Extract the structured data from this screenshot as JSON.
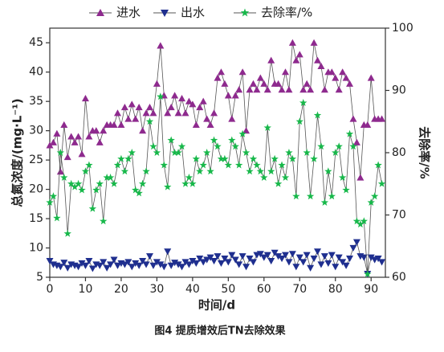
{
  "chart_data": {
    "type": "line",
    "title": "图4 提质增效后TN去除效果",
    "x_label": "时间/d",
    "y_label": "总氮浓度/(mg·L⁻¹)",
    "y2_label": "去除率/%",
    "xlim": [
      0,
      94
    ],
    "xticks": [
      0,
      10,
      20,
      30,
      40,
      50,
      60,
      70,
      80,
      90
    ],
    "ylim": [
      5,
      47.5
    ],
    "yticks": [
      5,
      10,
      15,
      20,
      25,
      30,
      35,
      40,
      45
    ],
    "y2lim": [
      60,
      100
    ],
    "y2ticks": [
      60,
      70,
      80,
      90,
      100
    ],
    "legend": "top",
    "x": [
      0,
      1,
      2,
      3,
      4,
      5,
      6,
      7,
      8,
      9,
      10,
      11,
      12,
      13,
      14,
      15,
      16,
      17,
      18,
      19,
      20,
      21,
      22,
      23,
      24,
      25,
      26,
      27,
      28,
      29,
      30,
      31,
      32,
      33,
      34,
      35,
      36,
      37,
      38,
      39,
      40,
      41,
      42,
      43,
      44,
      45,
      46,
      47,
      48,
      49,
      50,
      51,
      52,
      53,
      54,
      55,
      56,
      57,
      58,
      59,
      60,
      61,
      62,
      63,
      64,
      65,
      66,
      67,
      68,
      69,
      70,
      71,
      72,
      73,
      74,
      75,
      76,
      77,
      78,
      79,
      80,
      81,
      82,
      83,
      84,
      85,
      86,
      87,
      88,
      89,
      90,
      91,
      92,
      93
    ],
    "series": [
      {
        "name": "进水",
        "color": "#8e2a8e",
        "marker": "triangle-up",
        "values": [
          27.5,
          28,
          29.5,
          23,
          31,
          25.5,
          29,
          28,
          29,
          26,
          35.5,
          29,
          30,
          30,
          28,
          30,
          31,
          31,
          31,
          33,
          31,
          34,
          32,
          34.5,
          32,
          34,
          30,
          33,
          34,
          33,
          38,
          44.5,
          36,
          33,
          34,
          36,
          33,
          35.5,
          33,
          35,
          34.5,
          31,
          34,
          35,
          32,
          31,
          33,
          39,
          40,
          38,
          36,
          32,
          36,
          37,
          40,
          30,
          37,
          38,
          37,
          39,
          38,
          37,
          42,
          38,
          38,
          37,
          40,
          37,
          45,
          42,
          43,
          37,
          38,
          37,
          45,
          42,
          41,
          37,
          40,
          40,
          39,
          37,
          40,
          39,
          38,
          32,
          28,
          22,
          31,
          31,
          39,
          32,
          32,
          32
        ]
      },
      {
        "name": "出水",
        "color": "#1f2f8f",
        "marker": "triangle-down",
        "values": [
          7.8,
          7.2,
          7,
          6.8,
          7.5,
          6.6,
          7.2,
          7,
          6.8,
          7.4,
          7,
          7.8,
          6.5,
          7.2,
          7,
          7.6,
          6.6,
          7.2,
          8,
          7,
          7.4,
          7.2,
          7.6,
          6.8,
          7.4,
          7,
          7.8,
          7.2,
          8.6,
          7,
          7.6,
          7.2,
          6.8,
          9.4,
          7,
          7.5,
          7.2,
          6.8,
          7.6,
          7.2,
          7.8,
          7.4,
          8.2,
          7.6,
          8,
          8.4,
          7.8,
          8.6,
          7.4,
          8.2,
          7.6,
          8.8,
          8,
          7.2,
          8.6,
          6.8,
          8.2,
          7.6,
          8.8,
          9,
          8.4,
          8.8,
          7.8,
          9.2,
          8.6,
          8.2,
          8.8,
          7.6,
          9,
          6.8,
          8.4,
          7.6,
          8.8,
          6.6,
          8.2,
          9.4,
          7.2,
          8.6,
          7.4,
          8.8,
          6.8,
          8.4,
          7.6,
          7,
          8.2,
          10,
          11,
          8.6,
          8.4,
          5.6,
          8.4,
          8,
          8.2,
          7.6
        ]
      },
      {
        "name": "去除率/%",
        "color": "#17b84a",
        "marker": "star",
        "axis": "y2",
        "values": [
          72,
          73,
          69.5,
          80,
          76,
          67,
          75,
          74.5,
          75,
          74,
          77,
          78,
          71,
          74,
          75,
          69,
          76,
          76,
          75,
          78,
          79,
          77,
          79,
          80,
          74,
          73.5,
          75,
          77,
          85,
          81,
          80,
          89,
          78,
          74.5,
          82,
          80,
          80,
          81,
          75,
          76,
          75,
          79,
          77,
          78,
          80,
          77,
          82,
          81,
          79,
          79,
          78,
          82,
          81,
          78,
          83,
          80,
          77,
          79,
          78,
          77,
          76,
          84,
          77,
          79,
          75,
          78,
          76,
          80,
          79,
          73,
          85,
          88,
          80,
          73,
          79,
          86,
          81,
          72,
          77,
          73,
          80,
          81,
          76,
          74,
          83,
          81,
          69,
          68.5,
          69,
          60.5,
          72,
          73,
          78,
          75
        ]
      }
    ]
  }
}
